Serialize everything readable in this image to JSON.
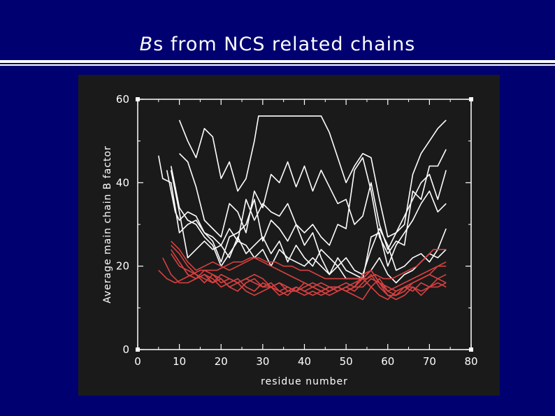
{
  "slide": {
    "title_italic": "B",
    "title_rest": "s from NCS related chains"
  },
  "chart_data": {
    "type": "line",
    "xlabel": "residue number",
    "ylabel": "Average main chain B factor",
    "xlim": [
      0,
      80
    ],
    "ylim": [
      0,
      60
    ],
    "xticks": [
      0,
      10,
      20,
      30,
      40,
      50,
      60,
      70,
      80
    ],
    "yticks": [
      0,
      20,
      40,
      60
    ],
    "grid": false,
    "series": [
      {
        "color": "#ffffff",
        "x": [
          5,
          6,
          8,
          10,
          12,
          14,
          16,
          18,
          20,
          22,
          24,
          26,
          28,
          30,
          32,
          34,
          36,
          38,
          40,
          42,
          44,
          46,
          48,
          50,
          52,
          54,
          56,
          58,
          60,
          62,
          64,
          66,
          68,
          70,
          72,
          74
        ],
        "y": [
          46.5,
          41,
          40,
          28,
          30,
          31,
          28,
          27,
          25,
          29,
          26,
          36,
          31,
          35,
          33,
          32,
          35,
          30,
          28,
          30,
          27,
          25,
          30,
          29,
          43,
          46,
          38,
          27,
          23,
          26,
          25,
          38,
          36,
          44,
          44,
          48
        ]
      },
      {
        "color": "#ffffff",
        "x": [
          10,
          12,
          14,
          16,
          18,
          20,
          22,
          24,
          26,
          28,
          29,
          32,
          36,
          40,
          44,
          46,
          48,
          50,
          52,
          54,
          56,
          58,
          60,
          62,
          64,
          66,
          68,
          70,
          72,
          74
        ],
        "y": [
          55,
          50,
          46,
          53,
          51,
          41,
          45,
          38,
          41,
          50,
          56,
          56,
          56,
          56,
          56,
          52,
          46,
          40,
          44,
          47,
          46,
          36,
          27,
          28,
          30,
          42,
          47,
          50,
          53,
          55
        ]
      },
      {
        "color": "#ffffff",
        "x": [
          10,
          12,
          14,
          16,
          18,
          20,
          22,
          24,
          26,
          28,
          30,
          32,
          34,
          36,
          38,
          40,
          42,
          44,
          46,
          48,
          50,
          52,
          54,
          56,
          58,
          60,
          62,
          64,
          66,
          68,
          70,
          72,
          74
        ],
        "y": [
          47,
          45,
          39,
          31,
          29,
          27,
          35,
          33,
          28,
          38,
          34,
          42,
          40,
          45,
          39,
          44,
          38,
          43,
          39,
          35,
          36,
          30,
          32,
          40,
          30,
          24,
          28,
          32,
          36,
          40,
          42,
          36,
          43
        ]
      },
      {
        "color": "#ffffff",
        "x": [
          7,
          9,
          10,
          12,
          14,
          16,
          18,
          20,
          22,
          24,
          26,
          28,
          30,
          32,
          34,
          36,
          38,
          40,
          42,
          44,
          46,
          48,
          50,
          52,
          54,
          56,
          58,
          60,
          62,
          64,
          66,
          68,
          70,
          72,
          74
        ],
        "y": [
          43,
          33,
          31,
          33,
          32,
          28,
          26,
          21,
          27,
          28,
          30,
          36,
          26,
          31,
          29,
          26,
          30,
          25,
          28,
          22,
          18,
          20,
          17,
          17,
          17,
          27,
          28,
          20,
          25,
          28,
          31,
          35,
          38,
          33,
          35
        ]
      },
      {
        "color": "#ffffff",
        "x": [
          8,
          10,
          12,
          14,
          16,
          18,
          20,
          22,
          24,
          26,
          28,
          30,
          32,
          34,
          36,
          38,
          40,
          42,
          44,
          46,
          48,
          50,
          52,
          54,
          56,
          58,
          60,
          62,
          64,
          66,
          68,
          70,
          72,
          74
        ],
        "y": [
          43,
          33,
          22,
          24,
          26,
          24,
          25,
          22,
          27,
          23,
          25,
          27,
          23,
          26,
          21,
          25,
          22,
          20,
          24,
          22,
          20,
          22,
          19,
          18,
          24,
          29,
          25,
          19,
          20,
          22,
          23,
          21,
          24,
          29
        ]
      },
      {
        "color": "#ffffff",
        "x": [
          8,
          10,
          12,
          14,
          16,
          18,
          20,
          22,
          24,
          26,
          28,
          30,
          32,
          34,
          36,
          38,
          40,
          42,
          44,
          46,
          48,
          50,
          52,
          54,
          56,
          58,
          60,
          62,
          64,
          66,
          68,
          70,
          72,
          74
        ],
        "y": [
          44,
          34,
          31,
          30,
          27,
          25,
          20,
          23,
          26,
          25,
          22,
          24,
          20,
          24,
          22,
          21,
          20,
          22,
          20,
          18,
          22,
          19,
          18,
          17,
          19,
          22,
          18,
          16,
          18,
          19,
          21,
          23,
          22,
          24
        ]
      },
      {
        "color": "#d84040",
        "x": [
          8,
          10,
          12,
          14,
          16,
          18,
          20,
          22,
          24,
          26,
          28,
          30,
          32,
          34,
          36,
          38,
          40,
          42,
          44,
          46,
          48,
          50,
          52,
          54,
          56,
          58,
          60,
          62,
          64,
          66,
          68,
          70,
          72,
          74
        ],
        "y": [
          26,
          24,
          21,
          19,
          20,
          21,
          20,
          19,
          20,
          21,
          22,
          21,
          20,
          19,
          18,
          17,
          16,
          15,
          16,
          15,
          15,
          14,
          15,
          18,
          19,
          16,
          15,
          14,
          15,
          16,
          17,
          18,
          20,
          21
        ]
      },
      {
        "color": "#d84040",
        "x": [
          5,
          7,
          9,
          11,
          13,
          15,
          17,
          19,
          21,
          23,
          25,
          27,
          29,
          31,
          33,
          35,
          37,
          39,
          41,
          43,
          45,
          47,
          49,
          51,
          53,
          55,
          57,
          59,
          61,
          63,
          65,
          67,
          69,
          71,
          73,
          74
        ],
        "y": [
          19,
          17,
          16,
          17,
          18,
          19,
          19,
          19,
          20,
          21,
          21,
          22,
          22,
          21,
          21,
          20,
          20,
          19,
          19,
          18,
          17,
          17,
          17,
          17,
          17,
          17,
          18,
          17,
          17,
          18,
          19,
          20,
          22,
          24,
          24,
          24
        ]
      },
      {
        "color": "#d84040",
        "x": [
          10,
          12,
          14,
          16,
          18,
          20,
          22,
          24,
          26,
          28,
          30,
          32,
          34,
          36,
          38,
          40,
          42,
          44,
          46,
          48,
          50,
          52,
          54,
          56,
          58,
          60,
          62,
          64,
          66,
          68,
          70,
          72,
          74
        ],
        "y": [
          21,
          18,
          17,
          19,
          18,
          16,
          17,
          16,
          17,
          18,
          17,
          15,
          16,
          15,
          14,
          16,
          15,
          14,
          15,
          15,
          16,
          15,
          17,
          19,
          16,
          13,
          13,
          15,
          15,
          13,
          15,
          17,
          18
        ]
      },
      {
        "color": "#d84040",
        "x": [
          8,
          10,
          12,
          14,
          16,
          18,
          20,
          22,
          24,
          26,
          28,
          30,
          32,
          34,
          36,
          38,
          40,
          42,
          44,
          46,
          48,
          50,
          52,
          54,
          56,
          58,
          60,
          62,
          64,
          66,
          68,
          70,
          72,
          74
        ],
        "y": [
          25,
          23,
          20,
          18,
          16,
          18,
          17,
          15,
          14,
          16,
          17,
          15,
          16,
          14,
          13,
          15,
          14,
          13,
          14,
          15,
          14,
          15,
          16,
          17,
          15,
          13,
          12,
          14,
          15,
          14,
          16,
          15,
          15,
          16
        ]
      },
      {
        "color": "#d84040",
        "x": [
          8,
          10,
          12,
          14,
          16,
          18,
          20,
          22,
          24,
          26,
          28,
          30,
          32,
          34,
          36,
          38,
          40,
          42,
          44,
          46,
          48,
          50,
          52,
          54,
          56,
          58,
          60,
          62,
          64,
          66,
          68,
          70,
          72,
          74
        ],
        "y": [
          24,
          21,
          18,
          17,
          18,
          17,
          15,
          16,
          17,
          15,
          14,
          16,
          15,
          14,
          15,
          14,
          13,
          14,
          13,
          14,
          15,
          14,
          13,
          12,
          15,
          17,
          14,
          13,
          14,
          16,
          17,
          18,
          17,
          16
        ]
      },
      {
        "color": "#d84040",
        "x": [
          6,
          8,
          10,
          12,
          14,
          16,
          18,
          20,
          22,
          24,
          26,
          28,
          30,
          32,
          34,
          36,
          38,
          40,
          42,
          44,
          46,
          48,
          50,
          52,
          54,
          56,
          58,
          60,
          62,
          64,
          66,
          68,
          70,
          72,
          74
        ],
        "y": [
          22,
          18,
          16,
          16,
          17,
          18,
          16,
          17,
          15,
          16,
          14,
          13,
          14,
          15,
          13,
          14,
          15,
          14,
          15,
          14,
          13,
          14,
          15,
          14,
          16,
          18,
          15,
          13,
          12,
          13,
          15,
          14,
          15,
          16,
          15
        ]
      },
      {
        "color": "#d84040",
        "x": [
          8,
          10,
          12,
          14,
          16,
          18,
          20,
          22,
          24,
          26,
          28,
          30,
          32,
          34,
          36,
          38,
          40,
          42,
          44,
          46,
          48,
          50,
          52,
          54,
          56,
          58,
          60,
          62,
          64,
          66,
          68,
          70,
          72,
          74
        ],
        "y": [
          23,
          20,
          19,
          18,
          17,
          16,
          18,
          17,
          16,
          17,
          16,
          15,
          15,
          16,
          14,
          14,
          15,
          16,
          15,
          14,
          15,
          14,
          15,
          15,
          17,
          16,
          14,
          15,
          16,
          17,
          18,
          19,
          20,
          20
        ]
      }
    ]
  }
}
